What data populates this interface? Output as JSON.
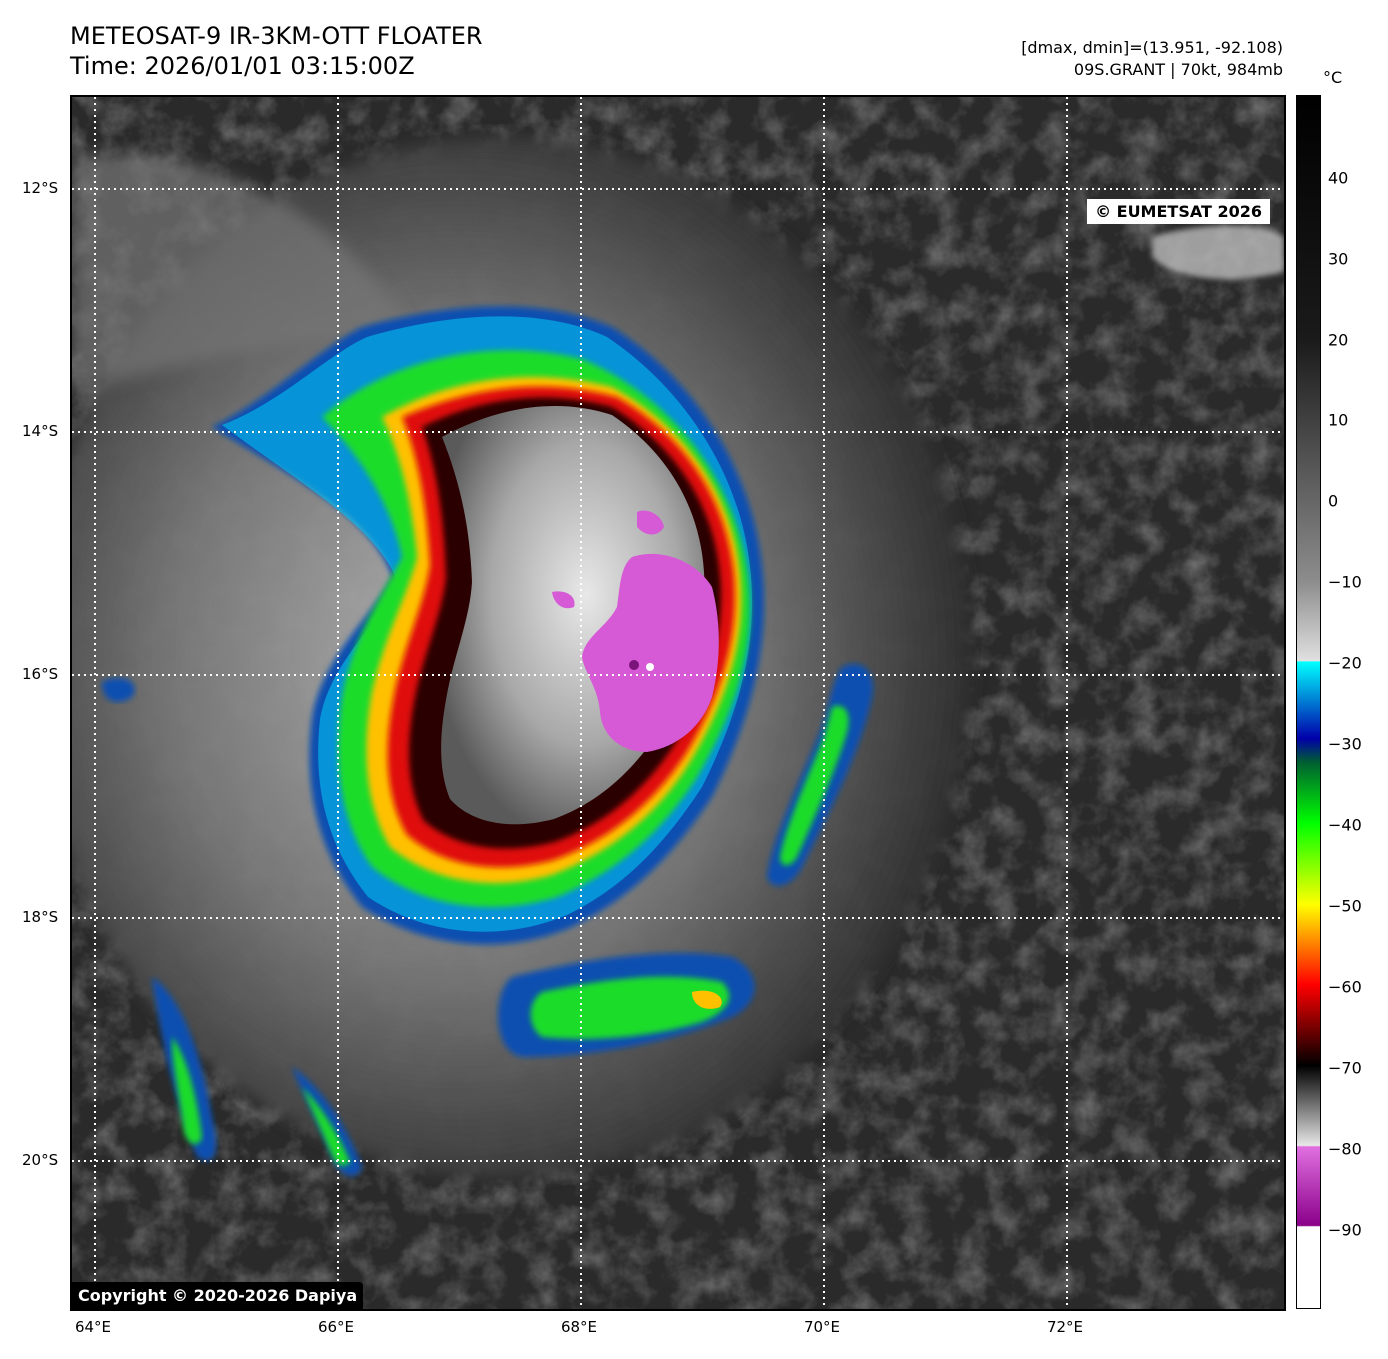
{
  "header": {
    "title_line1": "METEOSAT-9 IR-3KM-OTT FLOATER",
    "title_line2": "Time: 2026/01/01 03:15:00Z",
    "range_line": "[dmax, dmin]=(13.951, -92.108)",
    "storm_line": "09S.GRANT | 70kt, 984mb"
  },
  "map": {
    "credit": "© EUMETSAT 2026",
    "copyright": "Copyright © 2020-2026 Dapiya",
    "lat_labels": [
      "12°S",
      "14°S",
      "16°S",
      "18°S",
      "20°S"
    ],
    "lon_labels": [
      "64°E",
      "66°E",
      "68°E",
      "70°E",
      "72°E"
    ],
    "gridlines": "dotted white"
  },
  "colorbar": {
    "unit": "°C",
    "ticks": [
      "40",
      "30",
      "20",
      "10",
      "0",
      "−10",
      "−20",
      "−30",
      "−40",
      "−50",
      "−60",
      "−70",
      "−80",
      "−90"
    ],
    "colors": {
      "warm_top": "#000000",
      "gray_mid": "#8c8c8c",
      "cyan": "#00ffff",
      "blue": "#0000aa",
      "green": "#00ff00",
      "yellow": "#ffff00",
      "red": "#ff0000",
      "dark": "#000000",
      "magenta": "#d63cd6",
      "white_bottom": "#ffffff"
    }
  }
}
